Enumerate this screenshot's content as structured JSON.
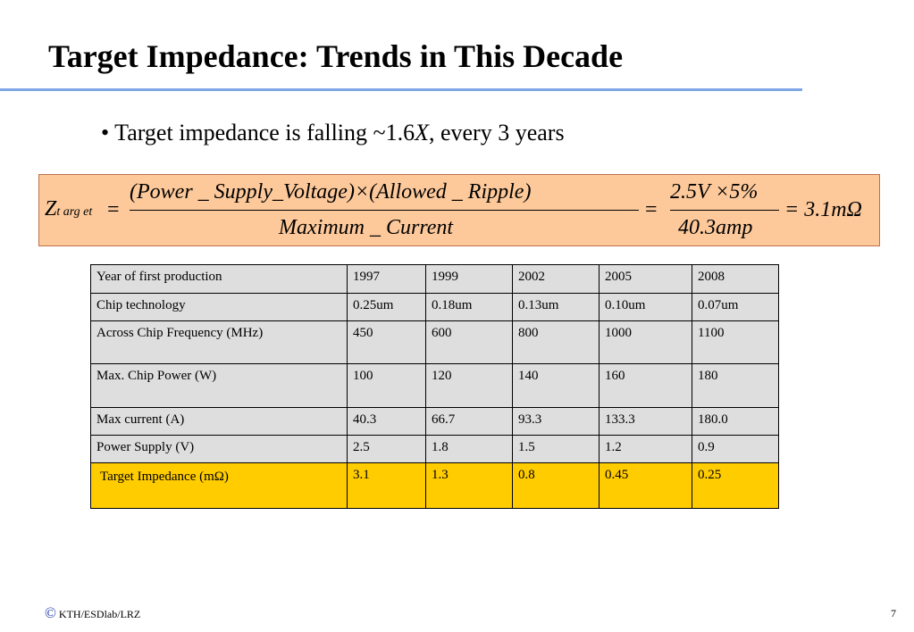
{
  "slide": {
    "title": "Target Impedance: Trends in This Decade",
    "bullet": {
      "prefix": "• Target impedance is falling ~1.6",
      "emph": "X",
      "suffix": ", every 3 years"
    },
    "formula": {
      "lhs_symbol": "Z",
      "lhs_subscript": "t arg et",
      "equals_1": "=",
      "numerator": "(Power _ Supply_Voltage)×(Allowed _ Ripple)",
      "denominator": "Maximum _ Current",
      "equals_2": "=",
      "numerator_2": "2.5V ×5%",
      "denominator_2": "40.3amp",
      "result": "= 3.1mΩ"
    },
    "table": {
      "rows": [
        [
          "Year of first production",
          "1997",
          "1999",
          "2002",
          "2005",
          "2008"
        ],
        [
          "Chip technology",
          "0.25um",
          "0.18um",
          "0.13um",
          "0.10um",
          "0.07um"
        ],
        [
          "Across Chip Frequency (MHz)",
          "450",
          "600",
          "800",
          "1000",
          "1100"
        ],
        [
          "Max. Chip Power (W)",
          "100",
          "120",
          "140",
          "160",
          "180"
        ],
        [
          "Max current (A)",
          "40.3",
          "66.7",
          "93.3",
          "133.3",
          "180.0"
        ],
        [
          "Power Supply (V)",
          "2.5",
          "1.8",
          "1.5",
          "1.2",
          "0.9"
        ],
        [
          "Target Impedance (mΩ)",
          "3.1",
          "1.3",
          "0.8",
          "0.45",
          "0.25"
        ]
      ],
      "highlight_color": "#ffcc00"
    },
    "footer": {
      "copyright_symbol": "©",
      "text": "KTH/ESDlab/LRZ",
      "page_number": "7"
    }
  }
}
